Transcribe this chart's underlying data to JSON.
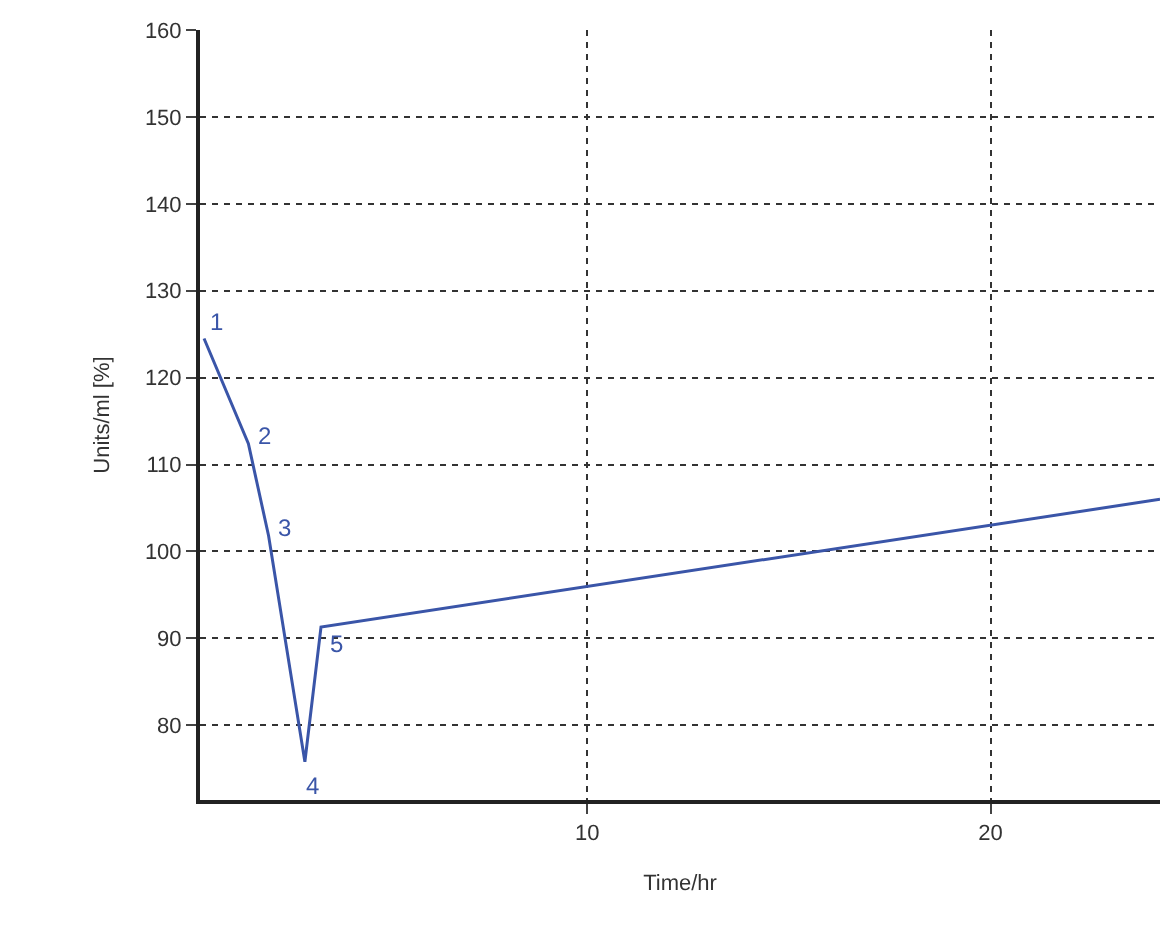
{
  "chart_data": {
    "type": "line",
    "xlabel": "Time/hr",
    "ylabel": "Units/ml [%]",
    "x": [
      0.5,
      1.6,
      2.1,
      3.0,
      3.4,
      24.2
    ],
    "series": [
      {
        "color": "#3a55a8",
        "values": [
          124.5,
          112.4,
          101.8,
          75.8,
          91.3,
          106.0
        ]
      }
    ],
    "xlim": [
      0.4,
      24.2
    ],
    "xticks": [
      10,
      20
    ],
    "ylim": [
      71.4,
      160
    ],
    "yticks": [
      80,
      90,
      100,
      110,
      120,
      130,
      140,
      150,
      160
    ],
    "grid": true,
    "marker": "none",
    "line_style": "solid",
    "annotations": [
      {
        "text": "1",
        "x": 0.5,
        "y": 124.5
      },
      {
        "text": "2",
        "x": 1.6,
        "y": 112.4
      },
      {
        "text": "3",
        "x": 2.1,
        "y": 101.8
      },
      {
        "text": "4",
        "x": 3.0,
        "y": 75.8
      },
      {
        "text": "5",
        "x": 3.4,
        "y": 91.3
      }
    ]
  }
}
